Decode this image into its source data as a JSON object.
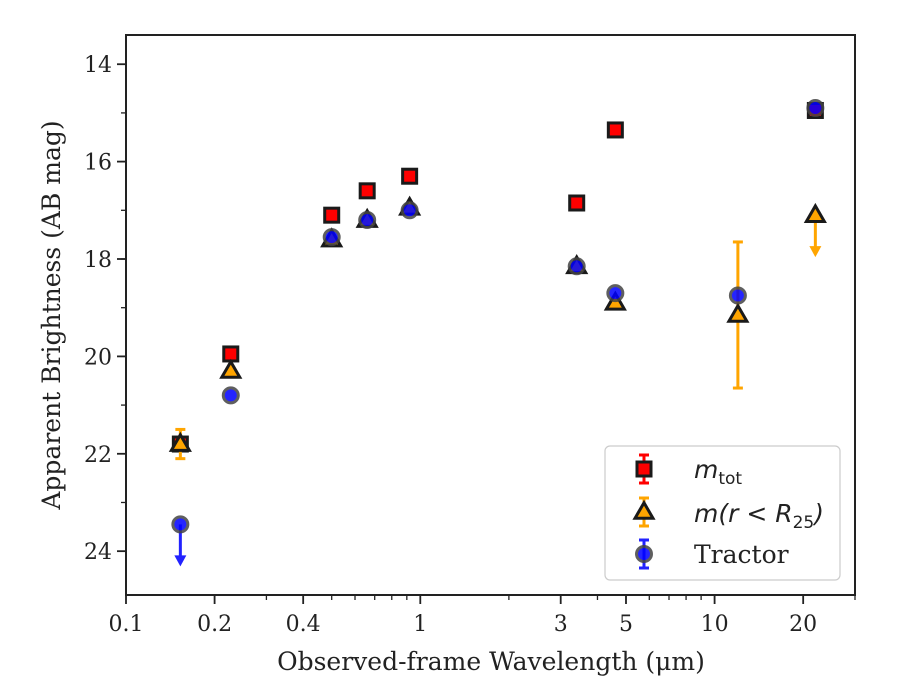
{
  "chart_data": {
    "type": "scatter",
    "xlabel": "Observed-frame Wavelength (μm)",
    "ylabel": "Apparent Brightness (AB mag)",
    "x_scale": "log",
    "xlim": [
      0.1,
      30
    ],
    "ylim": [
      24.9,
      13.4
    ],
    "x_ticks": [
      0.1,
      0.2,
      0.4,
      1,
      3,
      5,
      10,
      20
    ],
    "x_tick_labels": [
      "0.1",
      "0.2",
      "0.4",
      "1",
      "3",
      "5",
      "10",
      "20"
    ],
    "y_ticks": [
      14,
      16,
      18,
      20,
      22,
      24
    ],
    "y_tick_labels": [
      "14",
      "16",
      "18",
      "20",
      "22",
      "24"
    ],
    "grid": false,
    "legend_position": "lower-right",
    "series": [
      {
        "name": "m_tot",
        "marker": "square",
        "face_color": "#ff0000",
        "edge_color": "#1a1a1a",
        "err_color": "#ff0000",
        "points": [
          {
            "x": 0.153,
            "y": 21.8
          },
          {
            "x": 0.227,
            "y": 19.95
          },
          {
            "x": 0.5,
            "y": 17.1
          },
          {
            "x": 0.66,
            "y": 16.6
          },
          {
            "x": 0.92,
            "y": 16.3
          },
          {
            "x": 3.4,
            "y": 16.85
          },
          {
            "x": 4.6,
            "y": 15.35
          },
          {
            "x": 22,
            "y": 14.95
          }
        ]
      },
      {
        "name": "m(r<R25)",
        "marker": "triangle",
        "face_color": "#ffa500",
        "edge_color": "#1a1a1a",
        "err_color": "#ffa500",
        "points": [
          {
            "x": 0.153,
            "y": 21.8,
            "yerr": [
              0.3,
              0.3
            ]
          },
          {
            "x": 0.227,
            "y": 20.3
          },
          {
            "x": 0.5,
            "y": 17.6
          },
          {
            "x": 0.66,
            "y": 17.2
          },
          {
            "x": 0.92,
            "y": 16.95
          },
          {
            "x": 3.4,
            "y": 18.15
          },
          {
            "x": 4.6,
            "y": 18.9
          },
          {
            "x": 12,
            "y": 19.15,
            "yerr": [
              1.5,
              1.5
            ]
          },
          {
            "x": 22,
            "y": 17.1,
            "upper_limit": true
          }
        ]
      },
      {
        "name": "Tractor",
        "marker": "circle",
        "face_color": "#0000ff",
        "edge_color": "#444444",
        "err_color": "#2222ff",
        "points": [
          {
            "x": 0.153,
            "y": 23.45,
            "upper_limit": true
          },
          {
            "x": 0.227,
            "y": 20.8
          },
          {
            "x": 0.5,
            "y": 17.55
          },
          {
            "x": 0.66,
            "y": 17.2
          },
          {
            "x": 0.92,
            "y": 17.0
          },
          {
            "x": 3.4,
            "y": 18.15
          },
          {
            "x": 4.6,
            "y": 18.7
          },
          {
            "x": 12,
            "y": 18.75
          },
          {
            "x": 22,
            "y": 14.9
          }
        ]
      }
    ],
    "legend": {
      "m_tot": {
        "base": "m",
        "sub": "tot"
      },
      "m_r": {
        "base": "m(r < R",
        "sub": "25",
        "close": ")"
      },
      "tractor": "Tractor"
    }
  }
}
